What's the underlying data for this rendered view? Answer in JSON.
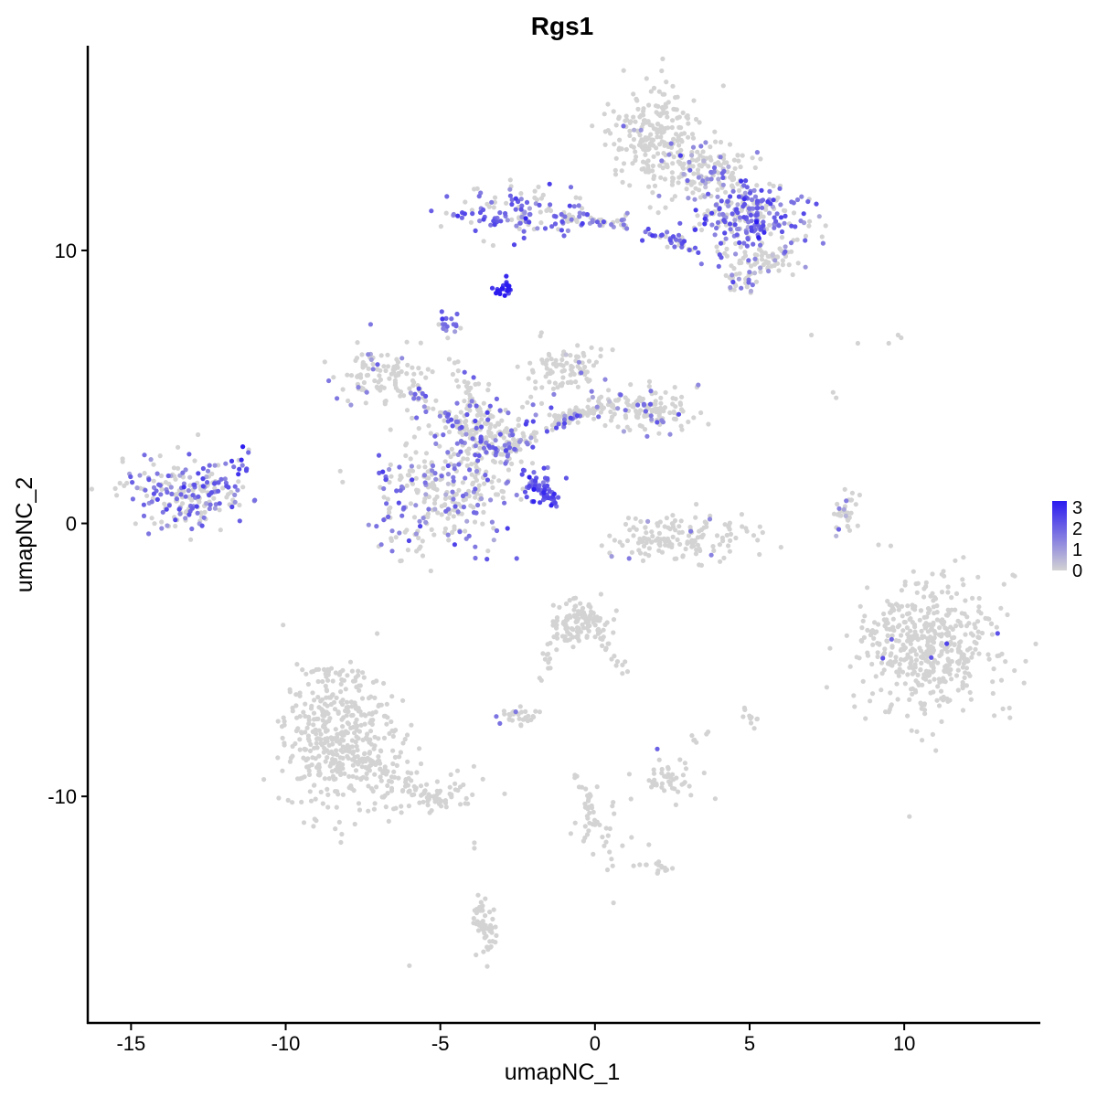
{
  "chart_data": {
    "type": "scatter",
    "title": "Rgs1",
    "xlabel": "umapNC_1",
    "ylabel": "umapNC_2",
    "xlim": [
      -16.4,
      14.4
    ],
    "ylim": [
      -18.3,
      17.5
    ],
    "x_ticks": [
      -15,
      -10,
      -5,
      0,
      5,
      10
    ],
    "x_tick_labels": [
      "-15",
      "-10",
      "-5",
      "0",
      "5",
      "10"
    ],
    "y_ticks": [
      10,
      0,
      -10
    ],
    "y_tick_labels": [
      "10",
      "0",
      "-10"
    ],
    "grid": false,
    "legend": {
      "placement": "right",
      "colors": {
        "low": "#d3d3d3",
        "high": "#2b1bf0"
      },
      "range": [
        0,
        3.3
      ],
      "ticks": [
        3,
        2,
        1,
        0
      ],
      "tick_labels": [
        "3",
        "2",
        "1",
        "0"
      ]
    },
    "color_scale": {
      "low": "#d3d3d3",
      "high": "#2b1bf0"
    },
    "clusters": [
      {
        "cx": 1.9,
        "cy": 14.2,
        "sx": 0.8,
        "sy": 0.9,
        "n": 220,
        "expr": 0.02,
        "level": 1.0
      },
      {
        "cx": 3.6,
        "cy": 12.8,
        "sx": 0.8,
        "sy": 0.6,
        "n": 140,
        "expr": 0.25,
        "level": 1.4
      },
      {
        "cx": 4.9,
        "cy": 11.2,
        "sx": 0.9,
        "sy": 0.7,
        "n": 260,
        "expr": 0.6,
        "level": 1.9
      },
      {
        "cx": 5.5,
        "cy": 9.6,
        "sx": 0.5,
        "sy": 0.3,
        "n": 60,
        "expr": 0.15,
        "level": 1.2
      },
      {
        "cx": 4.7,
        "cy": 8.9,
        "sx": 0.3,
        "sy": 0.3,
        "n": 25,
        "expr": 0.5,
        "level": 1.8
      },
      {
        "cx": -2.5,
        "cy": 11.4,
        "sx": 1.3,
        "sy": 0.45,
        "n": 130,
        "expr": 0.7,
        "level": 1.9
      },
      {
        "cx": -3.0,
        "cy": 8.6,
        "sx": 0.15,
        "sy": 0.12,
        "n": 22,
        "expr": 1.0,
        "level": 3.0
      },
      {
        "cx": -4.8,
        "cy": 7.3,
        "sx": 0.25,
        "sy": 0.2,
        "n": 18,
        "expr": 0.7,
        "level": 1.8
      },
      {
        "cx": -13.2,
        "cy": 1.1,
        "sx": 1.0,
        "sy": 0.6,
        "n": 220,
        "expr": 0.5,
        "level": 1.7
      },
      {
        "cx": -11.4,
        "cy": 2.4,
        "sx": 0.2,
        "sy": 0.3,
        "n": 12,
        "expr": 0.8,
        "level": 2.3
      },
      {
        "cx": -6.8,
        "cy": 5.4,
        "sx": 0.8,
        "sy": 0.5,
        "n": 110,
        "expr": 0.12,
        "level": 1.4
      },
      {
        "cx": -4.9,
        "cy": 1.0,
        "sx": 1.2,
        "sy": 1.0,
        "n": 280,
        "expr": 0.35,
        "level": 1.7
      },
      {
        "cx": -3.6,
        "cy": 3.3,
        "sx": 0.8,
        "sy": 0.8,
        "n": 160,
        "expr": 0.35,
        "level": 1.7
      },
      {
        "cx": -1.0,
        "cy": 5.6,
        "sx": 0.6,
        "sy": 0.5,
        "n": 90,
        "expr": 0.06,
        "level": 1.2
      },
      {
        "cx": 1.6,
        "cy": 4.1,
        "sx": 0.9,
        "sy": 0.4,
        "n": 130,
        "expr": 0.15,
        "level": 1.5
      },
      {
        "cx": -1.8,
        "cy": 1.3,
        "sx": 0.4,
        "sy": 0.3,
        "n": 30,
        "expr": 1.0,
        "level": 2.1
      },
      {
        "cx": 2.8,
        "cy": -0.5,
        "sx": 1.1,
        "sy": 0.45,
        "n": 150,
        "expr": 0.05,
        "level": 1.6
      },
      {
        "cx": 8.1,
        "cy": 0.3,
        "sx": 0.2,
        "sy": 0.5,
        "n": 18,
        "expr": 0.15,
        "level": 1.3
      },
      {
        "cx": 10.8,
        "cy": -4.5,
        "sx": 1.1,
        "sy": 1.3,
        "n": 500,
        "expr": 0.01,
        "level": 2.0
      },
      {
        "cx": -0.5,
        "cy": -3.6,
        "sx": 0.5,
        "sy": 0.4,
        "n": 90,
        "expr": 0.0,
        "level": 0
      },
      {
        "cx": -8.3,
        "cy": -8.0,
        "sx": 0.9,
        "sy": 1.2,
        "n": 420,
        "expr": 0.0,
        "level": 0
      },
      {
        "cx": -5.5,
        "cy": -9.8,
        "sx": 1.0,
        "sy": 0.4,
        "n": 60,
        "expr": 0.0,
        "level": 0
      },
      {
        "cx": 2.3,
        "cy": -9.4,
        "sx": 0.5,
        "sy": 0.3,
        "n": 45,
        "expr": 0.02,
        "level": 1.8
      },
      {
        "cx": -2.4,
        "cy": -7.0,
        "sx": 0.35,
        "sy": 0.2,
        "n": 30,
        "expr": 0.05,
        "level": 1.5
      },
      {
        "cx": 0.2,
        "cy": -11.3,
        "sx": 0.6,
        "sy": 0.8,
        "n": 35,
        "expr": 0.0,
        "level": 0
      },
      {
        "cx": 2.0,
        "cy": -12.6,
        "sx": 0.3,
        "sy": 0.15,
        "n": 15,
        "expr": 0.0,
        "level": 0
      },
      {
        "cx": -3.5,
        "cy": -14.8,
        "sx": 0.25,
        "sy": 0.5,
        "n": 40,
        "expr": 0.0,
        "level": 0
      },
      {
        "cx": 5.0,
        "cy": -7.2,
        "sx": 0.15,
        "sy": 0.2,
        "n": 10,
        "expr": 0.0,
        "level": 0
      },
      {
        "cx": 3.4,
        "cy": -7.8,
        "sx": 0.15,
        "sy": 0.2,
        "n": 6,
        "expr": 0.0,
        "level": 0
      }
    ],
    "bridges": [
      {
        "from": [
          -1.0,
          11.2
        ],
        "to": [
          1.2,
          11.0
        ],
        "n": 45,
        "expr": 0.45,
        "level": 1.6
      },
      {
        "from": [
          1.8,
          10.7
        ],
        "to": [
          3.4,
          10.0
        ],
        "n": 35,
        "expr": 0.7,
        "level": 2.0
      },
      {
        "from": [
          -6.0,
          4.8
        ],
        "to": [
          -3.0,
          2.6
        ],
        "n": 70,
        "expr": 0.35,
        "level": 1.8
      },
      {
        "from": [
          -3.0,
          2.6
        ],
        "to": [
          -0.6,
          4.0
        ],
        "n": 60,
        "expr": 0.3,
        "level": 1.7
      },
      {
        "from": [
          -4.6,
          6.2
        ],
        "to": [
          -3.4,
          3.0
        ],
        "n": 40,
        "expr": 0.1,
        "level": 1.4
      },
      {
        "from": [
          -2.4,
          1.9
        ],
        "to": [
          -1.3,
          0.7
        ],
        "n": 40,
        "expr": 1.0,
        "level": 2.2
      },
      {
        "from": [
          -1.4,
          3.8
        ],
        "to": [
          0.7,
          4.4
        ],
        "n": 50,
        "expr": 0.05,
        "level": 1.3
      },
      {
        "from": [
          -0.7,
          -2.8
        ],
        "to": [
          1.1,
          -5.6
        ],
        "n": 40,
        "expr": 0.0,
        "level": 0
      },
      {
        "from": [
          -1.2,
          -3.6
        ],
        "to": [
          -1.8,
          -5.8
        ],
        "n": 20,
        "expr": 0.0,
        "level": 0
      },
      {
        "from": [
          -7.5,
          -8.6
        ],
        "to": [
          -4.9,
          -10.3
        ],
        "n": 60,
        "expr": 0.0,
        "level": 0
      },
      {
        "from": [
          -9.2,
          -5.4
        ],
        "to": [
          -7.6,
          -5.5
        ],
        "n": 20,
        "expr": 0.0,
        "level": 0
      },
      {
        "from": [
          -0.6,
          -9.2
        ],
        "to": [
          0.0,
          -11.0
        ],
        "n": 20,
        "expr": 0.0,
        "level": 0
      },
      {
        "from": [
          -3.7,
          -13.8
        ],
        "to": [
          -3.5,
          -15.2
        ],
        "n": 20,
        "expr": 0.0,
        "level": 0
      },
      {
        "from": [
          7.9,
          -0.3
        ],
        "to": [
          8.4,
          1.2
        ],
        "n": 15,
        "expr": 0.1,
        "level": 1.2
      }
    ],
    "single_points": [
      [
        7.0,
        6.9,
        0
      ],
      [
        8.5,
        6.6,
        0
      ],
      [
        9.5,
        6.6,
        0
      ],
      [
        9.8,
        6.9,
        0
      ],
      [
        9.9,
        6.8,
        0
      ],
      [
        7.7,
        4.8,
        0
      ],
      [
        7.8,
        4.6,
        0
      ],
      [
        -6.0,
        -16.2,
        0
      ],
      [
        0.6,
        -13.9,
        0
      ],
      [
        -3.9,
        -11.7,
        0
      ],
      [
        -3.9,
        -11.9,
        0
      ]
    ]
  }
}
